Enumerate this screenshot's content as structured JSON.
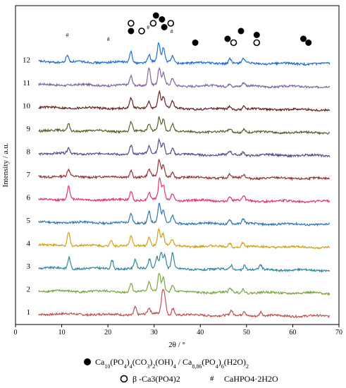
{
  "chart_data": {
    "type": "line",
    "xlabel": "2θ / °",
    "ylabel": "Intensity / a.u.",
    "xlim": [
      0,
      70
    ],
    "x_ticks": [
      "0",
      "10",
      "20",
      "30",
      "40",
      "50",
      "60",
      "70"
    ],
    "grid": false,
    "series": [
      {
        "label": "1",
        "color": "#c0504d",
        "baseline": 1,
        "peaks": [
          [
            25.9,
            3.5
          ],
          [
            28.9,
            2.5
          ],
          [
            31.8,
            9
          ],
          [
            32.3,
            7
          ],
          [
            34.1,
            3
          ],
          [
            46.7,
            2
          ],
          [
            49.5,
            2
          ],
          [
            53.1,
            1.8
          ]
        ]
      },
      {
        "label": "2",
        "color": "#77a73d",
        "baseline": 2,
        "peaks": [
          [
            25.0,
            4
          ],
          [
            28.9,
            4
          ],
          [
            31.1,
            8
          ],
          [
            32.0,
            6
          ],
          [
            34.0,
            3
          ],
          [
            46.5,
            1.8
          ],
          [
            49.3,
            1.8
          ]
        ]
      },
      {
        "label": "3",
        "color": "#31859c",
        "baseline": 3,
        "peaks": [
          [
            11.6,
            5
          ],
          [
            20.9,
            4
          ],
          [
            25.9,
            4
          ],
          [
            29.0,
            4
          ],
          [
            30.6,
            5
          ],
          [
            31.5,
            7
          ],
          [
            32.3,
            6
          ],
          [
            34.0,
            7
          ],
          [
            46.7,
            2
          ],
          [
            49.6,
            2
          ],
          [
            53.0,
            2
          ]
        ]
      },
      {
        "label": "4",
        "color": "#d4a017",
        "baseline": 4,
        "peaks": [
          [
            11.5,
            6
          ],
          [
            20.7,
            3
          ],
          [
            25.0,
            4
          ],
          [
            28.9,
            4
          ],
          [
            31.0,
            7
          ],
          [
            31.9,
            5
          ],
          [
            33.9,
            2.5
          ],
          [
            46.4,
            1.8
          ],
          [
            49.2,
            1.8
          ]
        ]
      },
      {
        "label": "5",
        "color": "#2e75b6",
        "baseline": 5,
        "peaks": [
          [
            25.0,
            4
          ],
          [
            28.9,
            5
          ],
          [
            31.1,
            8
          ],
          [
            32.0,
            5
          ],
          [
            34.0,
            3
          ],
          [
            46.4,
            2
          ],
          [
            49.3,
            2
          ]
        ]
      },
      {
        "label": "6",
        "color": "#e6336e",
        "baseline": 6,
        "peaks": [
          [
            11.5,
            6
          ],
          [
            25.0,
            4
          ],
          [
            28.9,
            3
          ],
          [
            31.2,
            9
          ],
          [
            32.0,
            6
          ],
          [
            34.0,
            3
          ],
          [
            46.4,
            2
          ],
          [
            49.4,
            2
          ]
        ]
      },
      {
        "label": "7",
        "color": "#943634",
        "baseline": 7,
        "peaks": [
          [
            11.5,
            3
          ],
          [
            25.0,
            3
          ],
          [
            28.9,
            3
          ],
          [
            31.1,
            7
          ],
          [
            32.0,
            5
          ],
          [
            34.0,
            2.5
          ],
          [
            46.4,
            1.5
          ],
          [
            49.4,
            1.5
          ]
        ]
      },
      {
        "label": "8",
        "color": "#5b4a8b",
        "baseline": 8,
        "peaks": [
          [
            11.5,
            2.5
          ],
          [
            25.0,
            4
          ],
          [
            28.9,
            3
          ],
          [
            31.1,
            6
          ],
          [
            32.0,
            5
          ],
          [
            34.0,
            2.5
          ],
          [
            46.4,
            1.5
          ],
          [
            49.3,
            1.5
          ]
        ]
      },
      {
        "label": "9",
        "color": "#4f6228",
        "baseline": 9,
        "peaks": [
          [
            11.5,
            3
          ],
          [
            25.0,
            4
          ],
          [
            28.9,
            3
          ],
          [
            31.1,
            6
          ],
          [
            32.0,
            5
          ],
          [
            34.0,
            3
          ],
          [
            46.4,
            1.5
          ],
          [
            49.4,
            1.5
          ]
        ]
      },
      {
        "label": "10",
        "color": "#632523",
        "baseline": 10,
        "peaks": [
          [
            25.0,
            4.5
          ],
          [
            28.9,
            3
          ],
          [
            31.1,
            7
          ],
          [
            32.0,
            5
          ],
          [
            34.0,
            3
          ],
          [
            46.4,
            1.5
          ],
          [
            49.4,
            1.5
          ]
        ]
      },
      {
        "label": "11",
        "color": "#8064a2",
        "baseline": 11,
        "peaks": [
          [
            25.0,
            4
          ],
          [
            28.9,
            8
          ],
          [
            31.1,
            7
          ],
          [
            32.0,
            5
          ],
          [
            34.0,
            3
          ],
          [
            46.4,
            1.5
          ],
          [
            49.4,
            1.5
          ]
        ]
      },
      {
        "label": "12",
        "color": "#1f6fd1",
        "baseline": 12,
        "peaks": [
          [
            11.2,
            3
          ],
          [
            25.0,
            5
          ],
          [
            28.9,
            3
          ],
          [
            31.0,
            8
          ],
          [
            32.0,
            6
          ],
          [
            34.0,
            3
          ],
          [
            46.4,
            2
          ],
          [
            49.3,
            2
          ]
        ]
      }
    ],
    "peak_markers": [
      {
        "type": "filled",
        "x": 25.0,
        "tier": 2
      },
      {
        "type": "open",
        "x": 25.0,
        "tier": 1
      },
      {
        "type": "open",
        "x": 27.3,
        "tier": 2
      },
      {
        "type": "hash",
        "x": 28.7,
        "tier": 1.5
      },
      {
        "type": "open",
        "x": 29.8,
        "tier": 1
      },
      {
        "type": "filled",
        "x": 30.4,
        "tier": 0
      },
      {
        "type": "filled",
        "x": 31.7,
        "tier": 0.5
      },
      {
        "type": "filled",
        "x": 32.2,
        "tier": 1.5
      },
      {
        "type": "open",
        "x": 33.6,
        "tier": 1
      },
      {
        "type": "hash",
        "x": 33.8,
        "tier": 2
      },
      {
        "type": "filled",
        "x": 38.9,
        "tier": 3.5
      },
      {
        "type": "filled",
        "x": 45.9,
        "tier": 3
      },
      {
        "type": "open",
        "x": 47.2,
        "tier": 3.5
      },
      {
        "type": "filled",
        "x": 48.8,
        "tier": 2
      },
      {
        "type": "filled",
        "x": 52.2,
        "tier": 2.5
      },
      {
        "type": "open",
        "x": 52.2,
        "tier": 3.5
      },
      {
        "type": "filled",
        "x": 62.3,
        "tier": 3
      },
      {
        "type": "filled",
        "x": 63.4,
        "tier": 3.5
      },
      {
        "type": "hash",
        "x": 11.2,
        "tier": 2.5
      },
      {
        "type": "hash",
        "x": 20.1,
        "tier": 3
      }
    ],
    "legend": {
      "filled": {
        "formula_html": "Ca<tspan baseline-shift='sub' font-size='8'>10</tspan>(PO<tspan baseline-shift='sub' font-size='8'>4</tspan>)<tspan baseline-shift='sub' font-size='8'>4</tspan>(CO<tspan baseline-shift='sub' font-size='8'>3</tspan>)<tspan baseline-shift='sub' font-size='8'>2</tspan>(OH)<tspan baseline-shift='sub' font-size='8'>4</tspan> / Ca<tspan baseline-shift='sub' font-size='8'>8,86</tspan>(PO<tspan baseline-shift='sub' font-size='8'>4</tspan>)<tspan baseline-shift='sub' font-size='8'>6</tspan>(H2O)<tspan baseline-shift='sub' font-size='8'>2</tspan>",
        "text": "Ca10(PO4)4(CO3)2(OH)4 / Ca8,86(PO4)6(H2O)2"
      },
      "open": {
        "text": "β -Ca3(PO4)2"
      },
      "hash": {
        "symbol": "#",
        "text": "CaHPO4·2H2O"
      }
    }
  }
}
